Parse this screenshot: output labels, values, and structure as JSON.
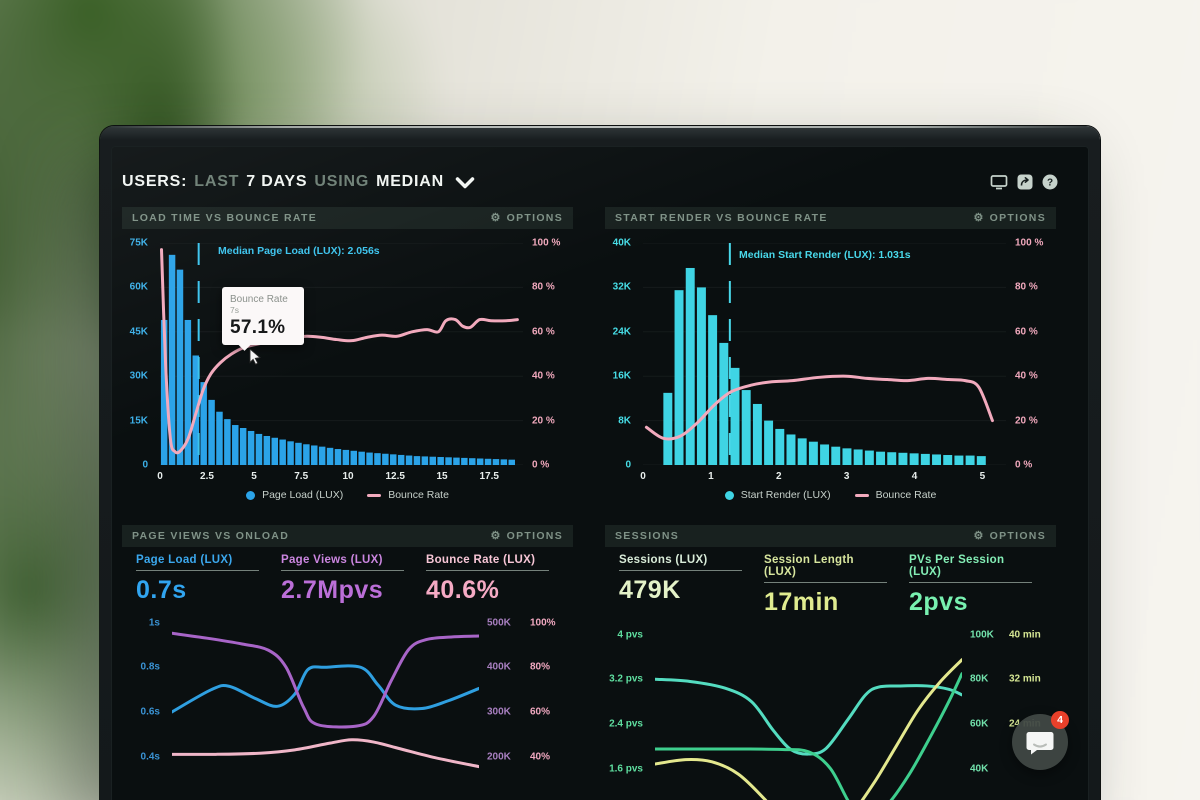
{
  "ui": {
    "options": "OPTIONS",
    "gear": "⚙",
    "help_glyph": "?"
  },
  "header": {
    "t1": "USERS:",
    "t2": "LAST",
    "t3": "7 DAYS",
    "t4": "USING",
    "t5": "MEDIAN"
  },
  "chat": {
    "badge": "4"
  },
  "colors": {
    "bar_blue": "#2ba3e8",
    "bar_cyan": "#3fd4e4",
    "bounce_pink": "#f2aabd",
    "annotation_cyan": "#3cc4ee",
    "page_load_blue": "#2f9fe0",
    "page_views_purple": "#a865c8",
    "bounce_rate_pink": "#f0b6c8",
    "sessions_teal": "#54dcc0",
    "session_length_green": "#3ecf8e",
    "pvs_yellow": "#e4e88e",
    "badge_red": "#e8402a"
  },
  "panels": {
    "load_time": {
      "title": "LOAD TIME VS BOUNCE RATE",
      "median_label": "Median Page Load (LUX): 2.056s",
      "tooltip": {
        "title": "Bounce Rate",
        "x": "7s",
        "value": "57.1%"
      },
      "yl": [
        "75K",
        "60K",
        "45K",
        "30K",
        "15K",
        "0"
      ],
      "yr": [
        "100 %",
        "80 %",
        "60 %",
        "40 %",
        "20 %",
        "0 %"
      ],
      "xt": [
        "0",
        "2.5",
        "5",
        "7.5",
        "10",
        "12.5",
        "15",
        "17.5"
      ],
      "legend": [
        "Page Load (LUX)",
        "Bounce Rate"
      ]
    },
    "start_render": {
      "title": "START RENDER VS BOUNCE RATE",
      "median_label": "Median Start Render (LUX): 1.031s",
      "yl": [
        "40K",
        "32K",
        "24K",
        "16K",
        "8K",
        "0"
      ],
      "yr": [
        "100 %",
        "80 %",
        "60 %",
        "40 %",
        "20 %",
        "0 %"
      ],
      "xt": [
        "0",
        "1",
        "2",
        "3",
        "4",
        "5"
      ],
      "legend": [
        "Start Render (LUX)",
        "Bounce Rate"
      ]
    },
    "page_views": {
      "title": "PAGE VIEWS VS ONLOAD",
      "metrics": [
        {
          "label": "Page Load (LUX)",
          "value": "0.7s"
        },
        {
          "label": "Page Views (LUX)",
          "value": "2.7Mpvs"
        },
        {
          "label": "Bounce Rate (LUX)",
          "value": "40.6%"
        }
      ],
      "yl": [
        "1s",
        "0.8s",
        "0.6s",
        "0.4s"
      ],
      "yrk": [
        "500K",
        "400K",
        "300K",
        "200K"
      ],
      "yrp": [
        "100%",
        "80%",
        "60%",
        "40%"
      ]
    },
    "sessions": {
      "title": "SESSIONS",
      "metrics": [
        {
          "label": "Sessions (LUX)",
          "value": "479K"
        },
        {
          "label": "Session Length (LUX)",
          "value": "17min"
        },
        {
          "label": "PVs Per Session (LUX)",
          "value": "2pvs"
        }
      ],
      "yl": [
        "4 pvs",
        "3.2 pvs",
        "2.4 pvs",
        "1.6 pvs"
      ],
      "yrk": [
        "100K",
        "80K",
        "60K",
        "40K"
      ],
      "yrp": [
        "40 min",
        "32 min",
        "24 min",
        ""
      ]
    }
  },
  "chart_data": [
    {
      "id": "load_time",
      "type": "bar+line",
      "title": "LOAD TIME VS BOUNCE RATE",
      "x_unit": "page load seconds",
      "x_range": [
        0,
        19.3
      ],
      "x_ticks": [
        0,
        2.5,
        5,
        7.5,
        10,
        12.5,
        15,
        17.5
      ],
      "y_left": {
        "range": [
          0,
          75
        ],
        "unit": "K pageviews",
        "ticks": [
          75,
          60,
          45,
          30,
          15,
          0
        ]
      },
      "y_right": {
        "range": [
          0,
          100
        ],
        "unit": "%",
        "ticks": [
          100,
          80,
          60,
          40,
          20,
          0
        ]
      },
      "grid": [
        0,
        0.2,
        0.4,
        0.6,
        0.8,
        1
      ],
      "median": {
        "x": 2.056,
        "label": "Median Page Load (LUX): 2.056s",
        "color": "#3cc4ee"
      },
      "bars": {
        "name": "Page Load (LUX)",
        "axis": "y_left",
        "color": "#2ba3e8",
        "start": 0.05,
        "step": 0.42,
        "width_frac": 0.82,
        "values": [
          49,
          71,
          66,
          49,
          37,
          28,
          22,
          18,
          15.5,
          13.5,
          12.5,
          11.5,
          10.5,
          9.8,
          9.2,
          8.6,
          8,
          7.5,
          7,
          6.6,
          6.2,
          5.8,
          5.4,
          5.1,
          4.8,
          4.5,
          4.2,
          4,
          3.8,
          3.6,
          3.4,
          3.2,
          3,
          2.9,
          2.8,
          2.7,
          2.6,
          2.5,
          2.4,
          2.3,
          2.2,
          2.1,
          2,
          1.9,
          1.8
        ]
      },
      "line": {
        "name": "Bounce Rate",
        "axis": "y_right",
        "color": "#f2aabd",
        "points": [
          [
            0.08,
            97
          ],
          [
            0.3,
            45
          ],
          [
            0.55,
            12
          ],
          [
            0.8,
            6
          ],
          [
            1.1,
            6.5
          ],
          [
            1.5,
            12
          ],
          [
            1.9,
            23
          ],
          [
            2.3,
            34
          ],
          [
            2.7,
            41
          ],
          [
            3.2,
            46
          ],
          [
            3.8,
            50
          ],
          [
            4.5,
            53
          ],
          [
            5.5,
            55
          ],
          [
            6.5,
            56.5
          ],
          [
            7,
            57.1
          ],
          [
            7.8,
            58
          ],
          [
            8.6,
            57.5
          ],
          [
            9.4,
            56.5
          ],
          [
            10.2,
            56
          ],
          [
            11,
            57.5
          ],
          [
            11.8,
            58.5
          ],
          [
            12.6,
            58
          ],
          [
            13.4,
            60
          ],
          [
            14.2,
            61
          ],
          [
            14.8,
            60
          ],
          [
            15.2,
            65
          ],
          [
            15.7,
            65.5
          ],
          [
            16.1,
            62.5
          ],
          [
            16.5,
            62
          ],
          [
            17,
            65.5
          ],
          [
            17.6,
            65
          ],
          [
            18.4,
            65
          ],
          [
            19,
            65.5
          ]
        ]
      },
      "tooltip_point": {
        "x_label": "7s",
        "series": "Bounce Rate",
        "value_pct": 57.1
      }
    },
    {
      "id": "start_render",
      "type": "bar+line",
      "title": "START RENDER VS BOUNCE RATE",
      "x_unit": "start render seconds",
      "x_range": [
        0,
        5.35
      ],
      "x_ticks": [
        0,
        1,
        2,
        3,
        4,
        5
      ],
      "y_left": {
        "range": [
          0,
          40
        ],
        "unit": "K pageviews",
        "ticks": [
          40,
          32,
          24,
          16,
          8,
          0
        ]
      },
      "y_right": {
        "range": [
          0,
          100
        ],
        "unit": "%",
        "ticks": [
          100,
          80,
          60,
          40,
          20,
          0
        ]
      },
      "grid": [
        0,
        0.2,
        0.4,
        0.6,
        0.8,
        1
      ],
      "median": {
        "x": 1.031,
        "draw_x": 1.28,
        "label": "Median Start Render (LUX): 1.031s",
        "color": "#49d8ea"
      },
      "bars": {
        "name": "Start Render (LUX)",
        "axis": "y_left",
        "color": "#3fd4e4",
        "start": 0.3,
        "step": 0.165,
        "width_frac": 0.8,
        "values": [
          13,
          31.5,
          35.5,
          32,
          27,
          22,
          17.5,
          13.5,
          11,
          8,
          6.5,
          5.5,
          4.8,
          4.2,
          3.7,
          3.3,
          3,
          2.8,
          2.6,
          2.4,
          2.3,
          2.2,
          2.1,
          2,
          1.9,
          1.8,
          1.7,
          1.7,
          1.6
        ]
      },
      "line": {
        "name": "Bounce Rate",
        "axis": "y_right",
        "color": "#f2aabd",
        "points": [
          [
            0.05,
            17
          ],
          [
            0.3,
            12
          ],
          [
            0.55,
            13
          ],
          [
            0.8,
            19
          ],
          [
            1.05,
            27
          ],
          [
            1.3,
            33
          ],
          [
            1.6,
            36
          ],
          [
            1.9,
            37.5
          ],
          [
            2.2,
            38
          ],
          [
            2.6,
            39.5
          ],
          [
            3,
            40
          ],
          [
            3.3,
            39
          ],
          [
            3.6,
            38.5
          ],
          [
            3.9,
            38
          ],
          [
            4.2,
            39
          ],
          [
            4.5,
            38.5
          ],
          [
            4.75,
            38
          ],
          [
            4.95,
            35
          ],
          [
            5.15,
            20
          ]
        ]
      }
    },
    {
      "id": "page_views",
      "type": "line",
      "title": "PAGE VIEWS VS ONLOAD",
      "x_unit": "last 7 days",
      "x_range": [
        0,
        7
      ],
      "y_left": {
        "range": [
          0.192,
          1.025
        ],
        "unit": "s",
        "ticks": [
          1,
          0.8,
          0.6,
          0.4
        ]
      },
      "y_right": {
        "range": [
          95.8,
          512.5
        ],
        "unit": "K pageviews",
        "ticks": [
          500,
          400,
          300,
          200
        ]
      },
      "y_right2": {
        "range": [
          19.2,
          102.5
        ],
        "unit": "%",
        "ticks": [
          100,
          80,
          60,
          40
        ]
      },
      "series": [
        {
          "name": "Page Load (LUX)",
          "unit": "s",
          "axis": "y_left",
          "color": "#2f9fe0",
          "points": [
            [
              0,
              0.6
            ],
            [
              0.9,
              0.7
            ],
            [
              1.3,
              0.715
            ],
            [
              1.9,
              0.66
            ],
            [
              2.4,
              0.625
            ],
            [
              2.8,
              0.68
            ],
            [
              3.1,
              0.79
            ],
            [
              3.5,
              0.8
            ],
            [
              4.3,
              0.8
            ],
            [
              4.7,
              0.72
            ],
            [
              5.1,
              0.63
            ],
            [
              5.7,
              0.615
            ],
            [
              6.3,
              0.65
            ],
            [
              7,
              0.705
            ]
          ]
        },
        {
          "name": "Page Views (LUX)",
          "unit": "K",
          "axis": "y_right",
          "color": "#a865c8",
          "points": [
            [
              0,
              476
            ],
            [
              0.8,
              465
            ],
            [
              1.6,
              452
            ],
            [
              2.2,
              438
            ],
            [
              2.6,
              400
            ],
            [
              3,
              310
            ],
            [
              3.3,
              272
            ],
            [
              4.2,
              268
            ],
            [
              4.6,
              290
            ],
            [
              5,
              370
            ],
            [
              5.4,
              440
            ],
            [
              5.8,
              462
            ],
            [
              6.4,
              468
            ],
            [
              7,
              470
            ]
          ]
        },
        {
          "name": "Bounce Rate (LUX)",
          "unit": "%",
          "axis": "y_right2",
          "color": "#f0b6c8",
          "points": [
            [
              0,
              41
            ],
            [
              1,
              41
            ],
            [
              2,
              41.5
            ],
            [
              2.8,
              43
            ],
            [
              3.6,
              46
            ],
            [
              4.1,
              47.5
            ],
            [
              4.6,
              46.5
            ],
            [
              5.2,
              43.5
            ],
            [
              6,
              39.5
            ],
            [
              7,
              35.5
            ]
          ]
        }
      ]
    },
    {
      "id": "sessions",
      "type": "line",
      "title": "SESSIONS",
      "x_unit": "last 7 days",
      "x_range": [
        0,
        7
      ],
      "y_left": {
        "range": [
          0.767,
          4.1
        ],
        "unit": "pvs",
        "ticks": [
          4,
          3.2,
          2.4,
          1.6
        ]
      },
      "y_right": {
        "range": [
          19.2,
          102.5
        ],
        "unit": "K sessions",
        "ticks": [
          100,
          80,
          60,
          40
        ]
      },
      "y_right2": {
        "range": [
          7.67,
          41
        ],
        "unit": "min",
        "ticks": [
          40,
          32,
          24,
          16
        ]
      },
      "series": [
        {
          "name": "Sessions (LUX)",
          "unit": "K",
          "axis": "y_right",
          "color": "#54dcc0",
          "points": [
            [
              0,
              80
            ],
            [
              0.8,
              79
            ],
            [
              1.6,
              76
            ],
            [
              2.2,
              70
            ],
            [
              2.7,
              57
            ],
            [
              3.1,
              48.5
            ],
            [
              3.5,
              46.5
            ],
            [
              3.9,
              49
            ],
            [
              4.4,
              62
            ],
            [
              4.8,
              73
            ],
            [
              5.1,
              76.5
            ],
            [
              5.6,
              77
            ],
            [
              6.2,
              77
            ],
            [
              6.7,
              75.5
            ],
            [
              7,
              73
            ]
          ]
        },
        {
          "name": "Session Length (LUX)",
          "unit": "min",
          "axis": "y_right2",
          "color": "#3ecf8e",
          "points": [
            [
              0,
              19.5
            ],
            [
              1,
              19.5
            ],
            [
              2,
              19.5
            ],
            [
              2.9,
              19.4
            ],
            [
              3.5,
              19
            ],
            [
              4,
              16
            ],
            [
              4.5,
              9
            ],
            [
              4.9,
              7.2
            ],
            [
              5.3,
              9.5
            ],
            [
              5.8,
              15
            ],
            [
              6.3,
              22
            ],
            [
              6.7,
              28
            ],
            [
              7,
              33
            ]
          ]
        },
        {
          "name": "PVs Per Session (LUX)",
          "unit": "pvs",
          "axis": "y_left",
          "color": "#e4e88e",
          "points": [
            [
              0,
              1.68
            ],
            [
              0.7,
              1.76
            ],
            [
              1.3,
              1.72
            ],
            [
              1.9,
              1.5
            ],
            [
              2.5,
              1.05
            ],
            [
              3,
              0.6
            ],
            [
              3.5,
              0.38
            ],
            [
              4,
              0.45
            ],
            [
              4.5,
              0.8
            ],
            [
              5,
              1.35
            ],
            [
              5.5,
              2
            ],
            [
              6,
              2.65
            ],
            [
              6.5,
              3.15
            ],
            [
              7,
              3.55
            ]
          ]
        }
      ]
    }
  ]
}
